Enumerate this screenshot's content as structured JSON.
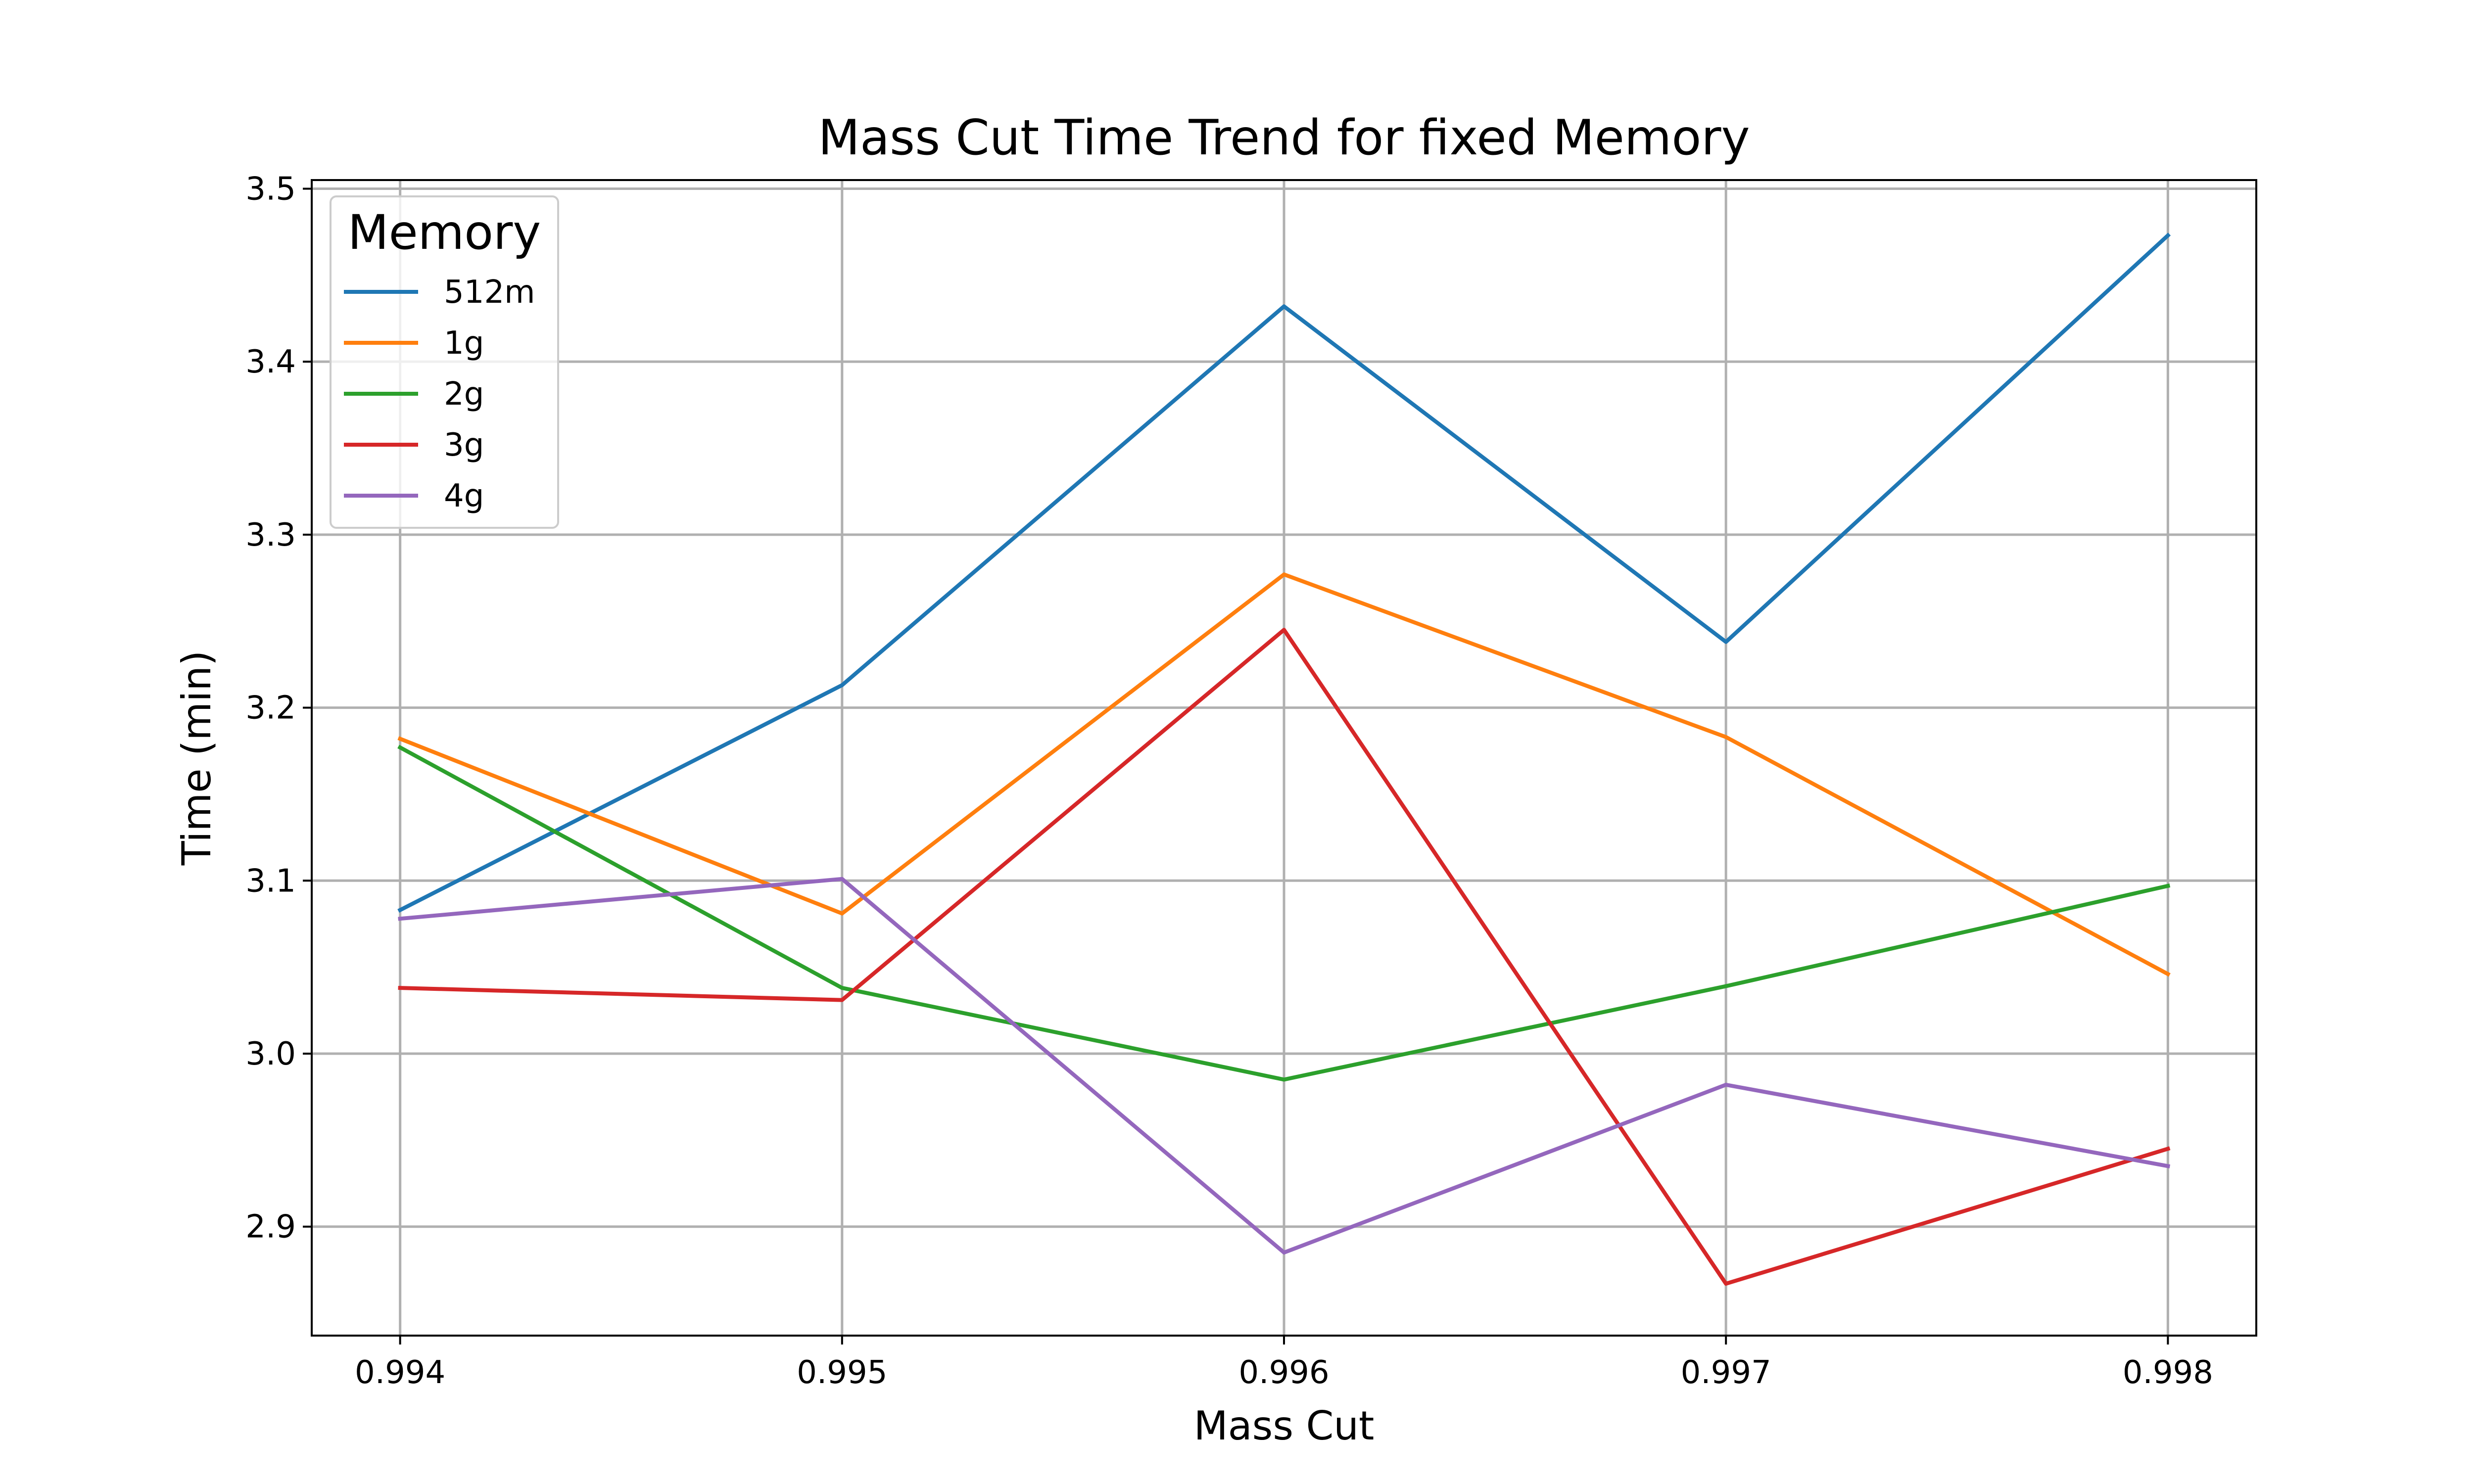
{
  "chart_data": {
    "type": "line",
    "title": "Mass Cut Time Trend for fixed Memory",
    "xlabel": "Mass Cut",
    "ylabel": "Time (min)",
    "x": [
      0.994,
      0.995,
      0.996,
      0.997,
      0.998
    ],
    "x_tick_labels": [
      "0.994",
      "0.995",
      "0.996",
      "0.997",
      "0.998"
    ],
    "y_ticks": [
      2.9,
      3.0,
      3.1,
      3.2,
      3.3,
      3.4,
      3.5
    ],
    "y_tick_labels": [
      "2.9",
      "3.0",
      "3.1",
      "3.2",
      "3.3",
      "3.4",
      "3.5"
    ],
    "xlim": [
      0.9938,
      0.9982
    ],
    "ylim": [
      2.837,
      3.505
    ],
    "grid": true,
    "legend": {
      "title": "Memory",
      "placement": "top-left"
    },
    "series": [
      {
        "name": "512m",
        "color": "#1f77b4",
        "values": [
          3.083,
          3.213,
          3.432,
          3.238,
          3.473
        ]
      },
      {
        "name": "1g",
        "color": "#ff7f0e",
        "values": [
          3.182,
          3.081,
          3.277,
          3.183,
          3.046
        ]
      },
      {
        "name": "2g",
        "color": "#2ca02c",
        "values": [
          3.177,
          3.038,
          2.985,
          3.039,
          3.097
        ]
      },
      {
        "name": "3g",
        "color": "#d62728",
        "values": [
          3.038,
          3.031,
          3.245,
          2.867,
          2.945
        ]
      },
      {
        "name": "4g",
        "color": "#9467bd",
        "values": [
          3.078,
          3.101,
          2.885,
          2.982,
          2.935
        ]
      }
    ]
  }
}
